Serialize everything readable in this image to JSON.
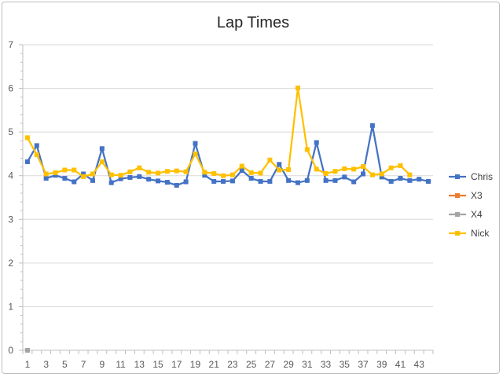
{
  "chart_data": {
    "type": "line",
    "title": "Lap Times",
    "xlabel": "",
    "ylabel": "",
    "ylim": [
      0,
      7
    ],
    "yticks": [
      0,
      1,
      2,
      3,
      4,
      5,
      6,
      7
    ],
    "x_label_ticks": [
      1,
      3,
      5,
      7,
      9,
      11,
      13,
      15,
      17,
      19,
      21,
      23,
      25,
      27,
      29,
      31,
      33,
      35,
      37,
      39,
      41,
      43
    ],
    "x_count": 44,
    "grid": "horizontal",
    "legend_position": "right",
    "series": [
      {
        "name": "Chris",
        "color": "#4472c4",
        "marker": "square",
        "x": [
          1,
          2,
          3,
          4,
          5,
          6,
          7,
          8,
          9,
          10,
          11,
          12,
          13,
          14,
          15,
          16,
          17,
          18,
          19,
          20,
          21,
          22,
          23,
          24,
          25,
          26,
          27,
          28,
          29,
          30,
          31,
          32,
          33,
          34,
          35,
          36,
          37,
          38,
          39,
          40,
          41,
          42,
          43,
          44
        ],
        "values": [
          4.32,
          4.69,
          3.94,
          4.01,
          3.94,
          3.86,
          4.04,
          3.89,
          4.62,
          3.84,
          3.93,
          3.96,
          3.98,
          3.92,
          3.88,
          3.85,
          3.78,
          3.86,
          4.74,
          4.01,
          3.87,
          3.87,
          3.88,
          4.12,
          3.94,
          3.87,
          3.87,
          4.26,
          3.89,
          3.84,
          3.89,
          4.76,
          3.89,
          3.89,
          3.97,
          3.86,
          4.04,
          5.15,
          3.97,
          3.87,
          3.94,
          3.89,
          3.92,
          3.87
        ]
      },
      {
        "name": "X3",
        "color": "#ed7d31",
        "marker": "square",
        "x": [
          1
        ],
        "values": [
          0
        ]
      },
      {
        "name": "X4",
        "color": "#a5a5a5",
        "marker": "square",
        "x": [
          1
        ],
        "values": [
          0
        ]
      },
      {
        "name": "Nick",
        "color": "#ffc000",
        "marker": "square",
        "x": [
          1,
          2,
          3,
          4,
          5,
          6,
          7,
          8,
          9,
          10,
          11,
          12,
          13,
          14,
          15,
          16,
          17,
          18,
          19,
          20,
          21,
          22,
          23,
          24,
          25,
          26,
          27,
          28,
          29,
          30,
          31,
          32,
          33,
          34,
          35,
          36,
          37,
          38,
          39,
          40,
          41,
          42
        ],
        "values": [
          4.87,
          4.48,
          4.04,
          4.07,
          4.13,
          4.13,
          3.98,
          4.04,
          4.32,
          4.02,
          4.01,
          4.09,
          4.18,
          4.08,
          4.06,
          4.1,
          4.11,
          4.09,
          4.5,
          4.08,
          4.05,
          4.0,
          4.02,
          4.22,
          4.07,
          4.06,
          4.36,
          4.13,
          4.14,
          6.01,
          4.6,
          4.15,
          4.05,
          4.1,
          4.16,
          4.15,
          4.21,
          4.02,
          4.04,
          4.18,
          4.23,
          4.02
        ]
      }
    ]
  }
}
